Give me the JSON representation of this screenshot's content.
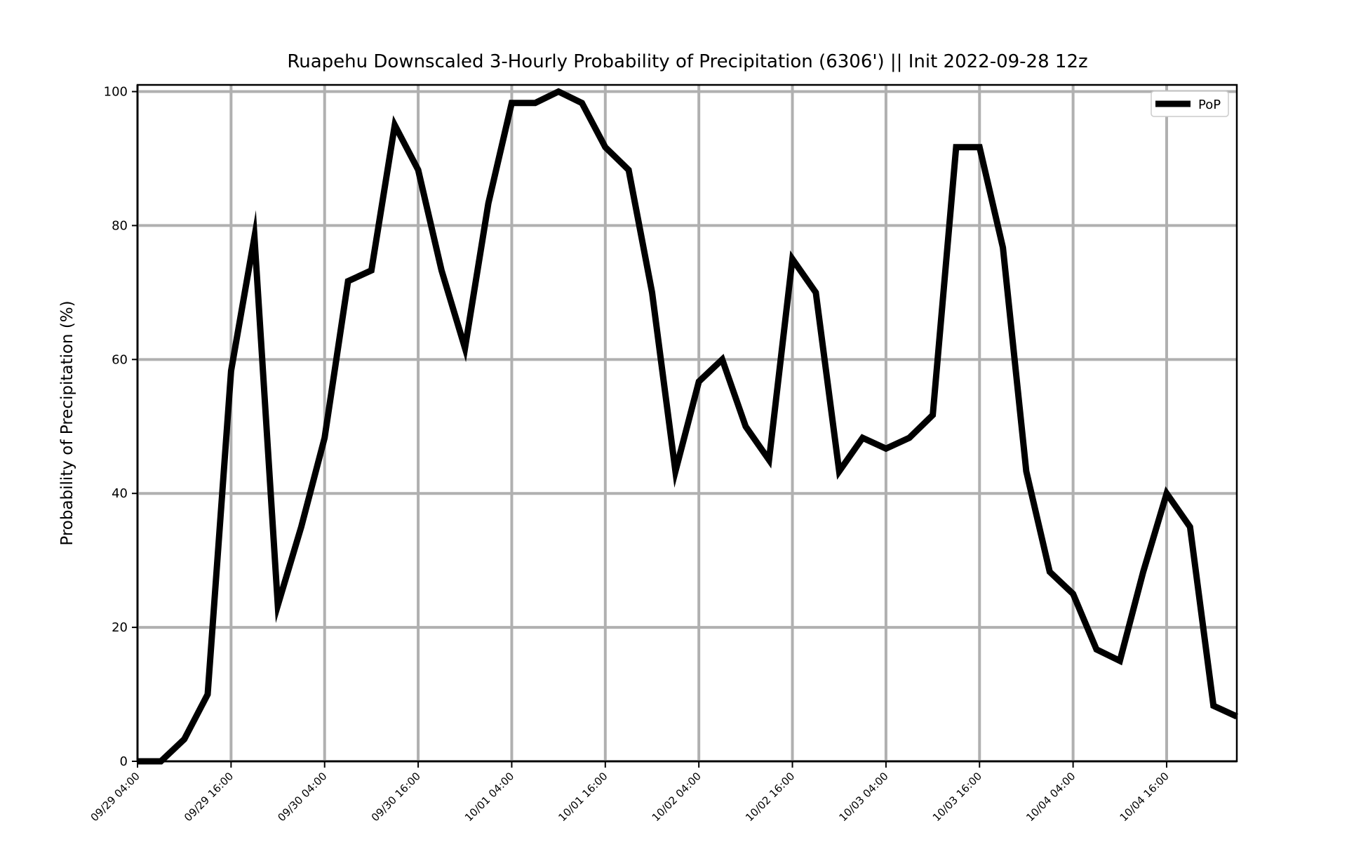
{
  "chart_data": {
    "type": "line",
    "title": "Ruapehu Downscaled 3-Hourly Probability of Precipitation (6306') || Init 2022-09-28 12z",
    "xlabel": "",
    "ylabel": "Probability of Precipitation (%)",
    "ylim": [
      0,
      101
    ],
    "yticks": [
      0,
      20,
      40,
      60,
      80,
      100
    ],
    "xticks": [
      "09/29 04:00",
      "09/29 16:00",
      "09/30 04:00",
      "09/30 16:00",
      "10/01 04:00",
      "10/01 16:00",
      "10/02 04:00",
      "10/02 16:00",
      "10/03 04:00",
      "10/03 16:00",
      "10/04 04:00",
      "10/04 16:00"
    ],
    "x_step_hours": 3,
    "grid": true,
    "legend_position": "top-right",
    "x": [
      "09/29 04:00",
      "09/29 07:00",
      "09/29 10:00",
      "09/29 13:00",
      "09/29 16:00",
      "09/29 19:00",
      "09/29 22:00",
      "09/30 01:00",
      "09/30 04:00",
      "09/30 07:00",
      "09/30 10:00",
      "09/30 13:00",
      "09/30 16:00",
      "09/30 19:00",
      "09/30 22:00",
      "10/01 01:00",
      "10/01 04:00",
      "10/01 07:00",
      "10/01 10:00",
      "10/01 13:00",
      "10/01 16:00",
      "10/01 19:00",
      "10/01 22:00",
      "10/02 01:00",
      "10/02 04:00",
      "10/02 07:00",
      "10/02 10:00",
      "10/02 13:00",
      "10/02 16:00",
      "10/02 19:00",
      "10/02 22:00",
      "10/03 01:00",
      "10/03 04:00",
      "10/03 07:00",
      "10/03 10:00",
      "10/03 13:00",
      "10/03 16:00",
      "10/03 19:00",
      "10/03 22:00",
      "10/04 01:00",
      "10/04 04:00",
      "10/04 07:00",
      "10/04 10:00",
      "10/04 13:00",
      "10/04 16:00",
      "10/04 19:00",
      "10/04 22:00",
      "10/05 01:00"
    ],
    "series": [
      {
        "name": "PoP",
        "color": "#000000",
        "values": [
          0,
          0,
          3.3,
          10,
          58.3,
          78.3,
          23.3,
          35,
          48.3,
          71.7,
          73.3,
          95,
          88.3,
          73.3,
          61.7,
          83.3,
          98.3,
          98.3,
          100,
          98.3,
          91.7,
          88.3,
          70,
          43.3,
          56.7,
          60,
          50,
          45,
          75,
          70,
          43.3,
          48.3,
          46.7,
          48.3,
          51.7,
          91.7,
          91.7,
          76.7,
          43.3,
          28.3,
          25,
          16.7,
          15,
          28.3,
          40,
          35,
          8.3,
          6.7
        ]
      }
    ]
  }
}
